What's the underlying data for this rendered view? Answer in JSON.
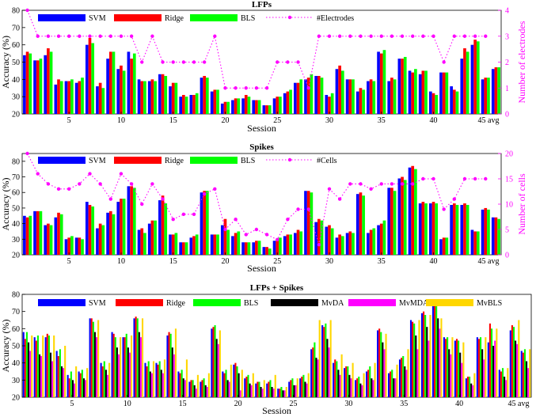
{
  "colors": {
    "svm": "#0000ff",
    "ridge": "#ff0000",
    "bls": "#00ff00",
    "mvda": "#000000",
    "mvmda": "#ff00ff",
    "mvbls": "#ffd700",
    "magenta": "#ff00ff"
  },
  "chart_data": [
    {
      "type": "bar",
      "title": "LFPs",
      "xlabel": "Session",
      "ylabel": "Accuracy (%)",
      "y2label": "Number of electrodes",
      "ylim": [
        20,
        80
      ],
      "yticks": [
        20,
        30,
        40,
        50,
        60,
        70,
        80
      ],
      "y2lim": [
        0,
        4
      ],
      "y2ticks": [
        0,
        1,
        2,
        3,
        4
      ],
      "xticks": [
        5,
        10,
        15,
        20,
        25,
        30,
        35,
        40
      ],
      "xtick_end_label": "45 avg",
      "categories": [
        1,
        2,
        3,
        4,
        5,
        6,
        7,
        8,
        9,
        10,
        11,
        12,
        13,
        14,
        15,
        16,
        17,
        18,
        19,
        20,
        21,
        22,
        23,
        24,
        25,
        26,
        27,
        28,
        29,
        30,
        31,
        32,
        33,
        34,
        35,
        36,
        37,
        38,
        39,
        40,
        41,
        42,
        43,
        44,
        45,
        "avg"
      ],
      "legend": [
        "SVM",
        "Ridge",
        "BLS",
        "#Electrodes"
      ],
      "series": [
        {
          "name": "SVM",
          "values": [
            54,
            51,
            54,
            37,
            39,
            38,
            60,
            36,
            52,
            46,
            56,
            40,
            39,
            43,
            36,
            30,
            31,
            41,
            33,
            26,
            28,
            29,
            28,
            25,
            29,
            32,
            38,
            40,
            42,
            31,
            46,
            40,
            33,
            39,
            56,
            39,
            52,
            45,
            43,
            33,
            44,
            36,
            52,
            60,
            40,
            46
          ]
        },
        {
          "name": "Ridge",
          "values": [
            56,
            51,
            58,
            40,
            39,
            39,
            64,
            38,
            56,
            48,
            52,
            39,
            40,
            43,
            38,
            31,
            31,
            42,
            34,
            27,
            29,
            31,
            28,
            25,
            30,
            33,
            38,
            41,
            42,
            30,
            48,
            40,
            35,
            40,
            55,
            41,
            52,
            44,
            45,
            32,
            44,
            34,
            58,
            63,
            41,
            47
          ]
        },
        {
          "name": "BLS",
          "values": [
            55,
            52,
            56,
            39,
            40,
            41,
            61,
            35,
            56,
            45,
            55,
            39,
            39,
            42,
            38,
            30,
            32,
            41,
            34,
            27,
            29,
            30,
            28,
            25,
            30,
            34,
            40,
            43,
            41,
            32,
            45,
            40,
            34,
            39,
            57,
            40,
            53,
            46,
            45,
            31,
            44,
            33,
            56,
            62,
            41,
            47
          ]
        }
      ],
      "line": {
        "name": "#Electrodes",
        "values": [
          4,
          3,
          3,
          3,
          3,
          3,
          3,
          3,
          3,
          3,
          3,
          2,
          3,
          2,
          2,
          2,
          2,
          2,
          3,
          1,
          1,
          1,
          1,
          1,
          2,
          2,
          2,
          1,
          3,
          3,
          3,
          3,
          3,
          3,
          3,
          3,
          3,
          3,
          3,
          3,
          2,
          3,
          3,
          3,
          3
        ]
      }
    },
    {
      "type": "bar",
      "title": "Spikes",
      "xlabel": "Session",
      "ylabel": "Accuracy (%)",
      "y2label": "Number of cells",
      "ylim": [
        20,
        85
      ],
      "yticks": [
        20,
        30,
        40,
        50,
        60,
        70,
        80
      ],
      "y2lim": [
        0,
        20
      ],
      "y2ticks": [
        0,
        5,
        10,
        15,
        20
      ],
      "xticks": [
        5,
        10,
        15,
        20,
        25,
        30,
        35,
        40
      ],
      "xtick_end_label": "45 avg",
      "categories": [
        1,
        2,
        3,
        4,
        5,
        6,
        7,
        8,
        9,
        10,
        11,
        12,
        13,
        14,
        15,
        16,
        17,
        18,
        19,
        20,
        21,
        22,
        23,
        24,
        25,
        26,
        27,
        28,
        29,
        30,
        31,
        32,
        33,
        34,
        35,
        36,
        37,
        38,
        39,
        40,
        41,
        42,
        43,
        44,
        45,
        "avg"
      ],
      "legend": [
        "SVM",
        "Ridge",
        "BLS",
        "#Cells"
      ],
      "series": [
        {
          "name": "SVM",
          "values": [
            45,
            48,
            39,
            44,
            30,
            31,
            54,
            37,
            47,
            54,
            64,
            36,
            40,
            55,
            33,
            28,
            31,
            60,
            33,
            39,
            32,
            28,
            28,
            25,
            29,
            32,
            34,
            61,
            41,
            38,
            31,
            34,
            59,
            34,
            39,
            63,
            69,
            76,
            53,
            53,
            30,
            52,
            52,
            36,
            49,
            44
          ]
        },
        {
          "name": "Ridge",
          "values": [
            44,
            48,
            40,
            47,
            31,
            31,
            52,
            40,
            48,
            56,
            64,
            37,
            42,
            58,
            33,
            28,
            32,
            61,
            33,
            43,
            34,
            28,
            29,
            25,
            30,
            33,
            36,
            61,
            43,
            39,
            33,
            35,
            60,
            36,
            40,
            63,
            70,
            77,
            54,
            54,
            31,
            53,
            53,
            35,
            50,
            44
          ]
        },
        {
          "name": "BLS",
          "values": [
            45,
            48,
            39,
            46,
            32,
            30,
            51,
            39,
            46,
            56,
            63,
            34,
            42,
            53,
            34,
            28,
            33,
            61,
            33,
            36,
            35,
            28,
            29,
            24,
            31,
            33,
            35,
            60,
            42,
            37,
            32,
            34,
            58,
            37,
            42,
            61,
            68,
            75,
            53,
            53,
            31,
            52,
            52,
            35,
            49,
            43
          ]
        }
      ],
      "line": {
        "name": "#Cells",
        "values": [
          20,
          16,
          14,
          13,
          13,
          14,
          16,
          14,
          11,
          16,
          14,
          10,
          14,
          11,
          7,
          8,
          8,
          12,
          13,
          5,
          7,
          4,
          5,
          4,
          3,
          7,
          9,
          9,
          2,
          13,
          11,
          14,
          14,
          13,
          14,
          14,
          14,
          14,
          15,
          15,
          9,
          11,
          15,
          15,
          15
        ]
      }
    },
    {
      "type": "bar",
      "title": "LFPs + Spikes",
      "xlabel": "Session",
      "ylabel": "Accuracy (%)",
      "ylim": [
        20,
        80
      ],
      "yticks": [
        20,
        30,
        40,
        50,
        60,
        70,
        80
      ],
      "xticks": [
        5,
        10,
        15,
        20,
        25,
        30,
        35,
        40
      ],
      "xtick_end_label": "45 avg",
      "categories": [
        1,
        2,
        3,
        4,
        5,
        6,
        7,
        8,
        9,
        10,
        11,
        12,
        13,
        14,
        15,
        16,
        17,
        18,
        19,
        20,
        21,
        22,
        23,
        24,
        25,
        26,
        27,
        28,
        29,
        30,
        31,
        32,
        33,
        34,
        35,
        36,
        37,
        38,
        39,
        40,
        41,
        42,
        43,
        44,
        45,
        "avg"
      ],
      "legend": [
        "SVM",
        "Ridge",
        "BLS",
        "MvDA",
        "MvMDA",
        "MvBLS"
      ],
      "series": [
        {
          "name": "SVM",
          "values": [
            58,
            55,
            55,
            47,
            33,
            35,
            66,
            40,
            58,
            55,
            66,
            40,
            40,
            56,
            35,
            29,
            29,
            60,
            35,
            39,
            31,
            28,
            28,
            25,
            29,
            31,
            48,
            62,
            40,
            37,
            30,
            35,
            59,
            34,
            42,
            65,
            69,
            77,
            55,
            53,
            31,
            55,
            52,
            36,
            59,
            47
          ]
        },
        {
          "name": "Ridge",
          "values": [
            54,
            53,
            57,
            44,
            31,
            34,
            66,
            38,
            57,
            55,
            67,
            38,
            39,
            58,
            34,
            30,
            30,
            61,
            34,
            40,
            32,
            29,
            29,
            25,
            30,
            32,
            49,
            61,
            42,
            38,
            31,
            36,
            60,
            35,
            43,
            64,
            70,
            76,
            54,
            54,
            32,
            54,
            63,
            35,
            62,
            46
          ]
        },
        {
          "name": "BLS",
          "values": [
            58,
            56,
            56,
            48,
            35,
            36,
            64,
            41,
            55,
            57,
            66,
            41,
            41,
            57,
            36,
            30,
            31,
            62,
            36,
            38,
            33,
            29,
            30,
            26,
            31,
            33,
            52,
            63,
            41,
            38,
            32,
            38,
            58,
            36,
            44,
            63,
            68,
            75,
            55,
            53,
            32,
            55,
            60,
            37,
            61,
            48
          ]
        },
        {
          "name": "MvDA",
          "values": [
            52,
            45,
            46,
            38,
            30,
            31,
            58,
            36,
            49,
            49,
            58,
            35,
            36,
            49,
            31,
            27,
            27,
            54,
            30,
            34,
            28,
            26,
            26,
            24,
            27,
            29,
            43,
            54,
            36,
            33,
            28,
            31,
            52,
            31,
            38,
            56,
            61,
            66,
            48,
            46,
            28,
            48,
            50,
            32,
            53,
            41
          ]
        },
        {
          "name": "MvMDA",
          "values": [
            47,
            44,
            41,
            37,
            28,
            30,
            55,
            33,
            45,
            46,
            55,
            34,
            34,
            45,
            30,
            25,
            26,
            51,
            29,
            24,
            27,
            25,
            25,
            24,
            27,
            28,
            42,
            49,
            33,
            31,
            27,
            30,
            48,
            31,
            36,
            48,
            53,
            60,
            45,
            40,
            27,
            42,
            53,
            30,
            51,
            37
          ]
        },
        {
          "name": "MvBLS",
          "values": [
            56,
            56,
            56,
            50,
            38,
            37,
            65,
            40,
            55,
            56,
            66,
            41,
            42,
            60,
            42,
            33,
            34,
            59,
            39,
            36,
            34,
            30,
            33,
            26,
            31,
            34,
            65,
            65,
            45,
            40,
            34,
            40,
            57,
            39,
            48,
            65,
            68,
            66,
            55,
            52,
            34,
            55,
            60,
            37,
            65,
            48
          ]
        }
      ]
    }
  ]
}
